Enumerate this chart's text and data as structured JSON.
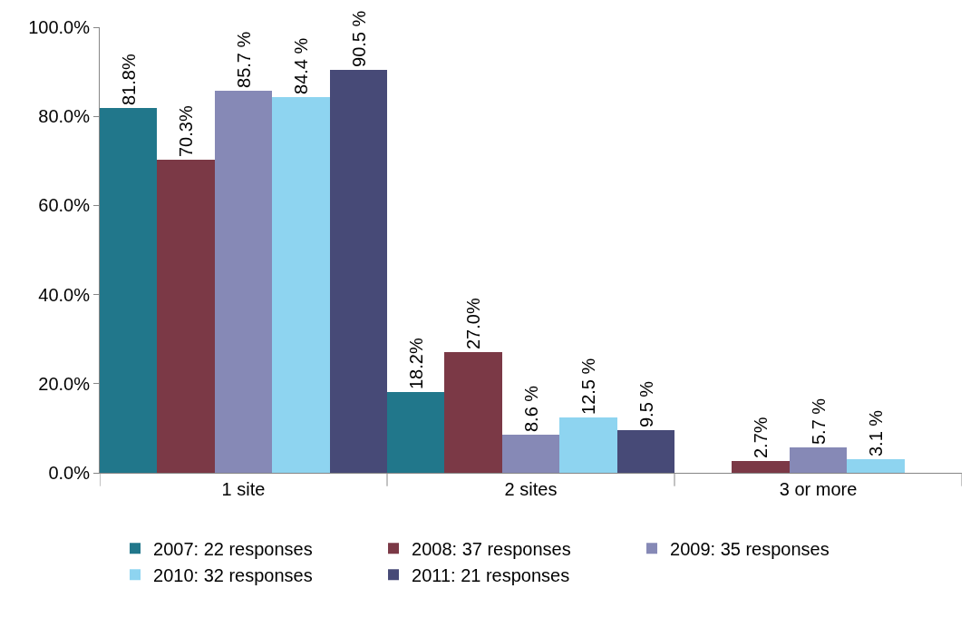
{
  "chart_data": {
    "type": "bar",
    "categories": [
      "1 site",
      "2 sites",
      "3 or more"
    ],
    "series": [
      {
        "name": "2007: 22 responses",
        "color": "#21778b",
        "values": [
          81.8,
          18.2,
          null
        ],
        "value_labels": [
          "81.8%",
          "18.2%",
          null
        ]
      },
      {
        "name": "2008: 37 responses",
        "color": "#7b3946",
        "values": [
          70.3,
          27.0,
          2.7
        ],
        "value_labels": [
          "70.3%",
          "27.0%",
          "2.7%"
        ]
      },
      {
        "name": "2009: 35 responses",
        "color": "#8689b6",
        "values": [
          85.7,
          8.6,
          5.7
        ],
        "value_labels": [
          "85.7 %",
          "8.6 %",
          "5.7 %"
        ]
      },
      {
        "name": "2010: 32 responses",
        "color": "#8ed4f0",
        "values": [
          84.4,
          12.5,
          3.1
        ],
        "value_labels": [
          "84.4 %",
          "12.5 %",
          "3.1 %"
        ]
      },
      {
        "name": "2011: 21 responses",
        "color": "#474a77",
        "values": [
          90.5,
          9.5,
          null
        ],
        "value_labels": [
          "90.5 %",
          "9.5 %",
          null
        ]
      }
    ],
    "ylim": [
      0,
      100
    ],
    "yticks": [
      {
        "value": 0,
        "label": "0.0%"
      },
      {
        "value": 20,
        "label": "20.0%"
      },
      {
        "value": 40,
        "label": "40.0%"
      },
      {
        "value": 60,
        "label": "60.0%"
      },
      {
        "value": 80,
        "label": "80.0%"
      },
      {
        "value": 100,
        "label": "100.0%"
      }
    ],
    "grid": false,
    "legend": "bottom"
  }
}
